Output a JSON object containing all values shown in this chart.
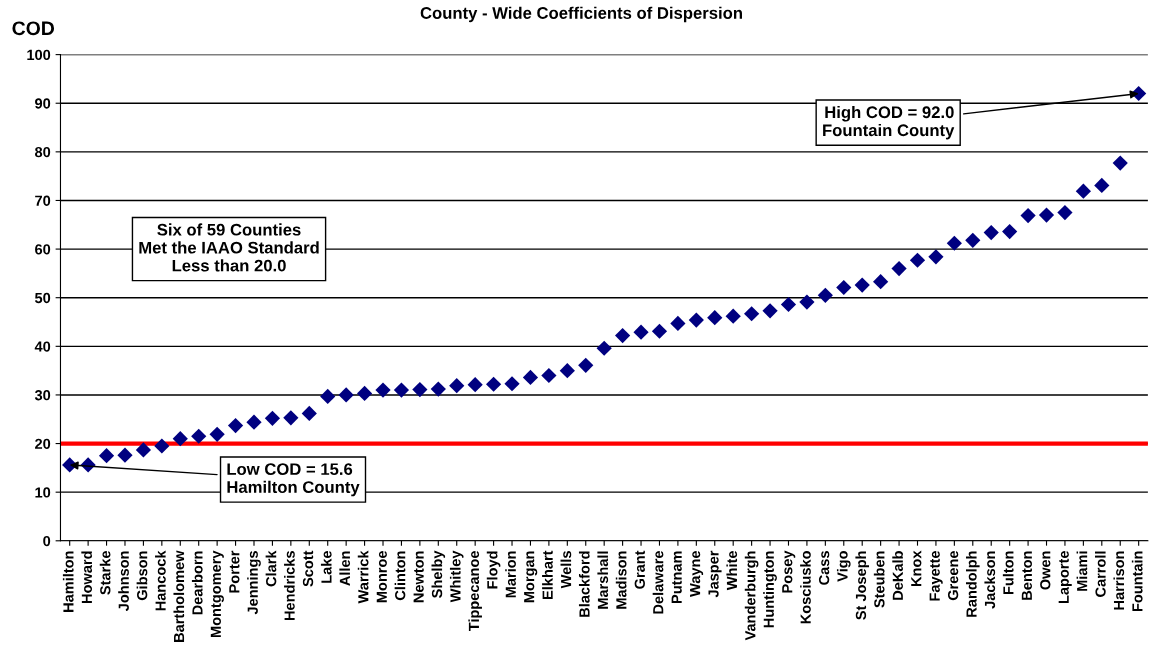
{
  "chart_data": {
    "type": "scatter",
    "title": "County - Wide Coefficients of Dispersion",
    "ylabel": "COD",
    "categories": [
      "Hamilton",
      "Howard",
      "Starke",
      "Johnson",
      "Gibson",
      "Hancock",
      "Bartholomew",
      "Dearborn",
      "Montgomery",
      "Porter",
      "Jennings",
      "Clark",
      "Hendricks",
      "Scott",
      "Lake",
      "Allen",
      "Warrick",
      "Monroe",
      "Clinton",
      "Newton",
      "Shelby",
      "Whitley",
      "Tippecanoe",
      "Floyd",
      "Marion",
      "Morgan",
      "Elkhart",
      "Wells",
      "Blackford",
      "Marshall",
      "Madison",
      "Grant",
      "Delaware",
      "Putnam",
      "Wayne",
      "Jasper",
      "White",
      "Vanderburgh",
      "Huntington",
      "Posey",
      "Kosciusko",
      "Cass",
      "Vigo",
      "St Joseph",
      "Steuben",
      "DeKalb",
      "Knox",
      "Fayette",
      "Greene",
      "Randolph",
      "Jackson",
      "Fulton",
      "Benton",
      "Owen",
      "Laporte",
      "Miami",
      "Carroll",
      "Harrison",
      "Fountain"
    ],
    "values": [
      15.6,
      15.6,
      17.5,
      17.6,
      18.7,
      19.5,
      21.0,
      21.5,
      21.9,
      23.7,
      24.4,
      25.2,
      25.3,
      26.2,
      29.7,
      30.0,
      30.3,
      31.0,
      31.0,
      31.1,
      31.2,
      31.9,
      32.1,
      32.2,
      32.3,
      33.6,
      34.0,
      35.0,
      36.1,
      39.6,
      42.2,
      42.9,
      43.1,
      44.7,
      45.4,
      45.9,
      46.2,
      46.7,
      47.3,
      48.6,
      49.1,
      50.5,
      52.1,
      52.6,
      53.3,
      56.0,
      57.7,
      58.4,
      61.2,
      61.8,
      63.4,
      63.6,
      66.9,
      67.0,
      67.5,
      71.9,
      73.1,
      77.7,
      92.0
    ],
    "color": "#000080",
    "marker": "diamond",
    "ylim": [
      0,
      100
    ],
    "yticks": [
      0,
      10,
      20,
      30,
      40,
      50,
      60,
      70,
      80,
      90,
      100
    ],
    "grid": "y",
    "ref_lines": [
      {
        "axis": "y",
        "value": 20,
        "color": "#ff0000"
      }
    ],
    "annotations": [
      {
        "text": "High COD = 92.0\nFountain County",
        "x": "Fountain",
        "y": 92.0
      },
      {
        "text": "Low COD = 15.6\nHamilton County",
        "x": "Hamilton",
        "y": 15.6
      },
      "Six of 59 Counties\nMet the IAAO Standard\nLess than 20.0"
    ]
  }
}
